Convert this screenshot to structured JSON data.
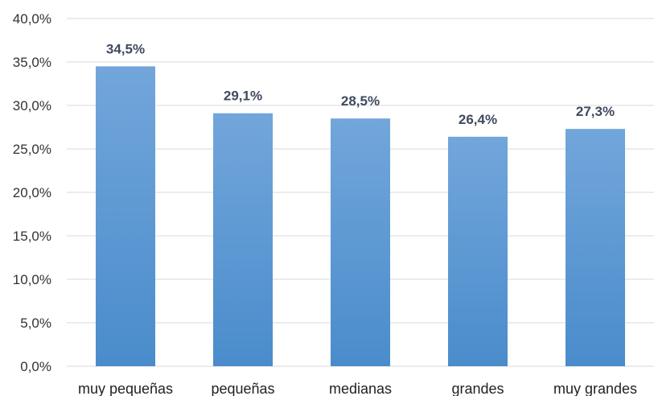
{
  "chart_data": {
    "type": "bar",
    "categories": [
      "muy pequeñas",
      "pequeñas",
      "medianas",
      "grandes",
      "muy grandes"
    ],
    "values": [
      34.5,
      29.1,
      28.5,
      26.4,
      27.3
    ],
    "value_labels": [
      "34,5%",
      "29,1%",
      "28,5%",
      "26,4%",
      "27,3%"
    ],
    "y_ticks": [
      "0,0%",
      "5,0%",
      "10,0%",
      "15,0%",
      "20,0%",
      "25,0%",
      "30,0%",
      "35,0%",
      "40,0%"
    ],
    "ylim": [
      0,
      40
    ],
    "grid": true,
    "title": "",
    "xlabel": "",
    "ylabel": "",
    "colors": {
      "bar_top": "#72a6db",
      "bar_bottom": "#4a8ccb",
      "grid": "#d9d9d9"
    }
  }
}
